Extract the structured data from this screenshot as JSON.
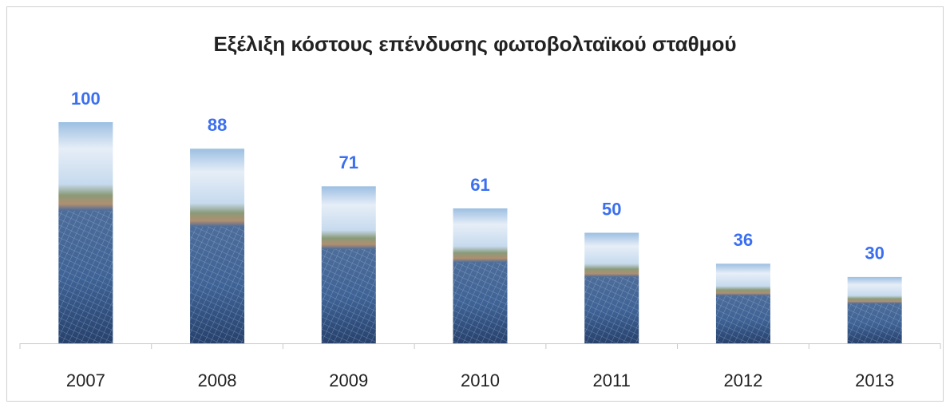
{
  "chart_data": {
    "type": "bar",
    "title": "Εξέλιξη κόστους επένδυσης φωτοβολταϊκού σταθμού",
    "categories": [
      "2007",
      "2008",
      "2009",
      "2010",
      "2011",
      "2012",
      "2013"
    ],
    "values": [
      100,
      88,
      71,
      61,
      50,
      36,
      30
    ],
    "label_color": "#3b6ff0",
    "ylim": [
      0,
      100
    ]
  }
}
